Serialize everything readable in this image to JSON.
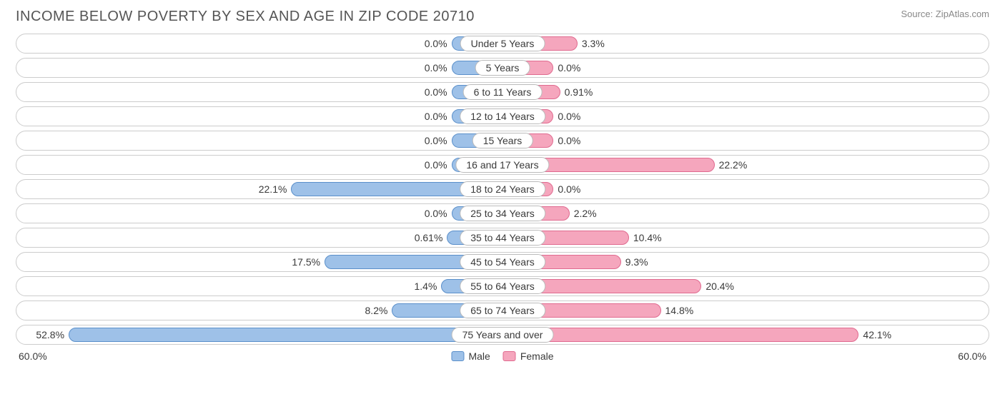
{
  "title": "INCOME BELOW POVERTY BY SEX AND AGE IN ZIP CODE 20710",
  "source": "Source: ZipAtlas.com",
  "axis_max": 60.0,
  "axis_label_left": "60.0%",
  "axis_label_right": "60.0%",
  "base_bar_pct": 10.5,
  "colors": {
    "male_fill": "#9ec1e8",
    "male_border": "#5a8fca",
    "female_fill": "#f5a6bd",
    "female_border": "#e06a8f",
    "row_border": "#cccccc",
    "text": "#3a3a3a",
    "title": "#555555",
    "source": "#888888",
    "background": "#ffffff"
  },
  "legend": {
    "male": "Male",
    "female": "Female"
  },
  "rows": [
    {
      "category": "Under 5 Years",
      "male": 0.0,
      "female": 3.3,
      "male_label": "0.0%",
      "female_label": "3.3%"
    },
    {
      "category": "5 Years",
      "male": 0.0,
      "female": 0.0,
      "male_label": "0.0%",
      "female_label": "0.0%"
    },
    {
      "category": "6 to 11 Years",
      "male": 0.0,
      "female": 0.91,
      "male_label": "0.0%",
      "female_label": "0.91%"
    },
    {
      "category": "12 to 14 Years",
      "male": 0.0,
      "female": 0.0,
      "male_label": "0.0%",
      "female_label": "0.0%"
    },
    {
      "category": "15 Years",
      "male": 0.0,
      "female": 0.0,
      "male_label": "0.0%",
      "female_label": "0.0%"
    },
    {
      "category": "16 and 17 Years",
      "male": 0.0,
      "female": 22.2,
      "male_label": "0.0%",
      "female_label": "22.2%"
    },
    {
      "category": "18 to 24 Years",
      "male": 22.1,
      "female": 0.0,
      "male_label": "22.1%",
      "female_label": "0.0%"
    },
    {
      "category": "25 to 34 Years",
      "male": 0.0,
      "female": 2.2,
      "male_label": "0.0%",
      "female_label": "2.2%"
    },
    {
      "category": "35 to 44 Years",
      "male": 0.61,
      "female": 10.4,
      "male_label": "0.61%",
      "female_label": "10.4%"
    },
    {
      "category": "45 to 54 Years",
      "male": 17.5,
      "female": 9.3,
      "male_label": "17.5%",
      "female_label": "9.3%"
    },
    {
      "category": "55 to 64 Years",
      "male": 1.4,
      "female": 20.4,
      "male_label": "1.4%",
      "female_label": "20.4%"
    },
    {
      "category": "65 to 74 Years",
      "male": 8.2,
      "female": 14.8,
      "male_label": "8.2%",
      "female_label": "14.8%"
    },
    {
      "category": "75 Years and over",
      "male": 52.8,
      "female": 42.1,
      "male_label": "52.8%",
      "female_label": "42.1%"
    }
  ]
}
